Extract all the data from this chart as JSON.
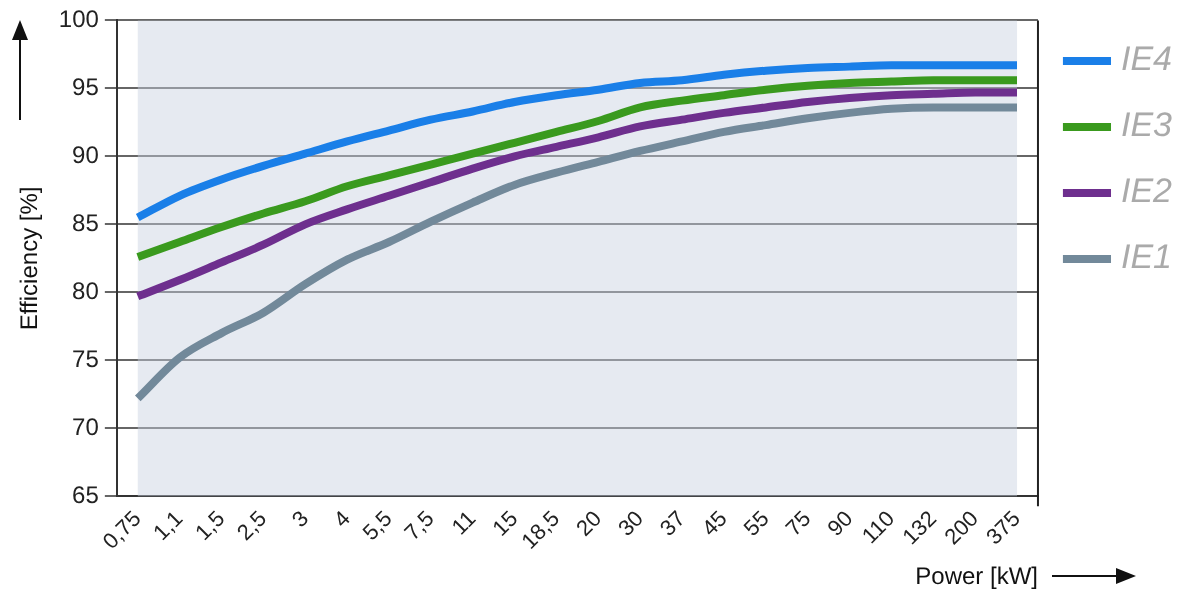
{
  "chart_data": {
    "type": "line",
    "xlabel": "Power [kW]",
    "ylabel": "Efficiency [%]",
    "categories": [
      "0,75",
      "1,1",
      "1,5",
      "2,5",
      "3",
      "4",
      "5,5",
      "7,5",
      "11",
      "15",
      "18,5",
      "20",
      "30",
      "37",
      "45",
      "55",
      "75",
      "90",
      "110",
      "132",
      "200",
      "375"
    ],
    "series": [
      {
        "name": "IE4",
        "color": "#1a7fe8",
        "values": [
          85.5,
          87.1,
          88.3,
          89.3,
          90.2,
          91.1,
          91.9,
          92.7,
          93.3,
          94.0,
          94.5,
          94.9,
          95.4,
          95.6,
          96.0,
          96.3,
          96.5,
          96.6,
          96.7,
          96.7,
          96.7,
          96.7
        ]
      },
      {
        "name": "IE3",
        "color": "#3a9a1e",
        "values": [
          82.6,
          83.7,
          84.8,
          85.8,
          86.7,
          87.8,
          88.6,
          89.4,
          90.2,
          91.0,
          91.8,
          92.6,
          93.6,
          94.1,
          94.5,
          94.9,
          95.2,
          95.4,
          95.5,
          95.6,
          95.6,
          95.6
        ]
      },
      {
        "name": "IE2",
        "color": "#6e2f8e",
        "values": [
          79.7,
          80.9,
          82.2,
          83.5,
          85.0,
          86.1,
          87.1,
          88.1,
          89.1,
          90.0,
          90.7,
          91.4,
          92.2,
          92.7,
          93.2,
          93.6,
          94.0,
          94.3,
          94.5,
          94.6,
          94.7,
          94.7
        ]
      },
      {
        "name": "IE1",
        "color": "#72899a",
        "values": [
          72.2,
          75.2,
          77.0,
          78.5,
          80.6,
          82.4,
          83.7,
          85.2,
          86.6,
          87.9,
          88.8,
          89.6,
          90.4,
          91.1,
          91.8,
          92.3,
          92.8,
          93.2,
          93.5,
          93.6,
          93.6,
          93.6
        ]
      }
    ],
    "ylim": [
      65,
      100
    ],
    "yticks": [
      65,
      70,
      75,
      80,
      85,
      90,
      95,
      100
    ],
    "grid": "y",
    "legend": "right",
    "marker": "none",
    "line_style": "solid"
  }
}
